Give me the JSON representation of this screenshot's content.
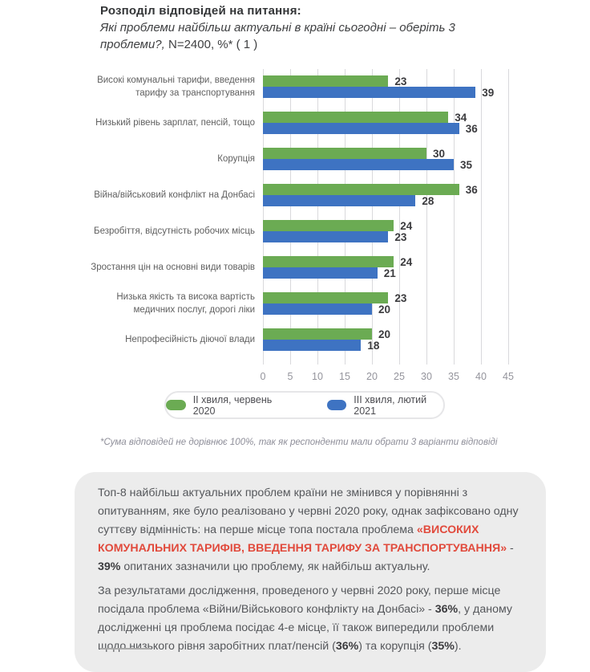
{
  "header": {
    "title": "Розподіл відповідей на питання:",
    "subtitle_line1": [
      {
        "text": "Які проблеми найбільш актуальні в країні сьогодні – оберіть 3",
        "style": "italic"
      }
    ],
    "subtitle_line2": [
      {
        "text": "проблеми?,",
        "style": "italic"
      },
      {
        "text": " N=2400, %* ( 1 )",
        "style": "upright"
      }
    ]
  },
  "chart_data": {
    "type": "bar",
    "orientation": "horizontal",
    "title": "Розподіл відповідей на питання: Які проблеми найбільш актуальні в країні сьогодні – оберіть 3 проблеми?, N=2400, %",
    "categories": [
      "Високі комунальні тарифи, введення тарифу за транспортування",
      "Низький рівень зарплат, пенсій, тощо",
      "Корупція",
      "Війна/військовий конфлікт на Донбасі",
      "Безробіття, відсутність робочих місць",
      "Зростання цін на основні види товарів",
      "Низька якість та висока вартість медичних послуг, дорогі ліки",
      "Непрофесійність діючої влади"
    ],
    "series": [
      {
        "name": "ІІ хвиля, червень 2020",
        "color": "#6BAB53",
        "values": [
          23,
          34,
          30,
          36,
          24,
          24,
          23,
          20
        ]
      },
      {
        "name": "ІІІ хвиля, лютий 2021",
        "color": "#3E73C2",
        "values": [
          39,
          36,
          35,
          28,
          23,
          21,
          20,
          18
        ]
      }
    ],
    "xlim": [
      0,
      45
    ],
    "xticks": [
      0,
      5,
      10,
      15,
      20,
      25,
      30,
      35,
      40,
      45
    ],
    "grid": true,
    "legend_position": "bottom"
  },
  "footnote": "*Сума відповідей не дорівнює 100%, так як респонденти мали обрати 3 варіанти відповіді",
  "summary": {
    "paragraph1": [
      {
        "text": "Топ-8 найбільш актуальних проблем країни не змінився у порівнянні з опитуванням, яке було реалізовано у червні 2020 року, однак зафіксовано одну суттєву відмінність: на перше місце топа постала проблема ",
        "style": "normal"
      },
      {
        "text": "«ВИСОКИХ КОМУНАЛЬНИХ ТАРИФІВ, ВВЕДЕННЯ ТАРИФУ ЗА ТРАНСПОРТУВАННЯ»",
        "style": "red-bold"
      },
      {
        "text": " - ",
        "style": "normal"
      },
      {
        "text": "39%",
        "style": "bold"
      },
      {
        "text": " опитаних зазначили цю проблему, як найбільш актуальну.",
        "style": "normal"
      }
    ],
    "paragraph2": [
      {
        "text": "За результатами дослідження, проведеного у червні 2020 року, перше місце посідала проблема «Війни/Військового конфлікту на Донбасі» - ",
        "style": "normal"
      },
      {
        "text": "36%",
        "style": "bold"
      },
      {
        "text": ", у даному дослідженні ця проблема посідає 4-е місце, її також випередили проблеми щодо низького рівня заробітних плат/пенсій (",
        "style": "normal"
      },
      {
        "text": "36%",
        "style": "bold"
      },
      {
        "text": ") та корупція (",
        "style": "normal"
      },
      {
        "text": "35%",
        "style": "bold"
      },
      {
        "text": ").",
        "style": "normal"
      }
    ]
  },
  "colors": {
    "wave2_green": "#6BAB53",
    "wave3_blue": "#3E73C2",
    "accent_red": "#E14A3C",
    "box_background": "#ECECEC"
  }
}
